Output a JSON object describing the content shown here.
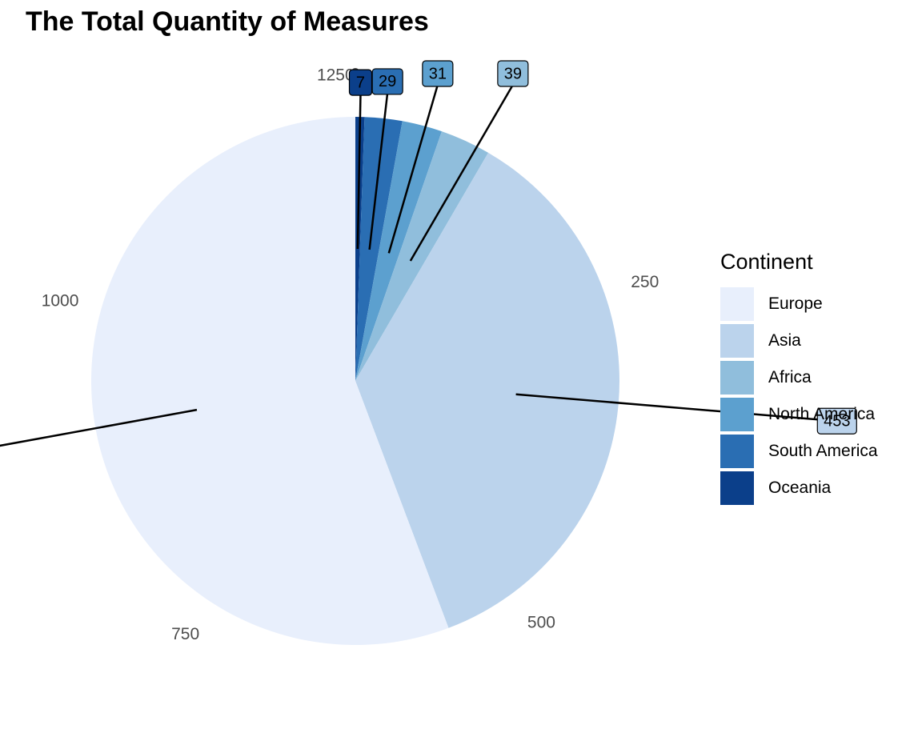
{
  "title": "The Total Quantity of Measures",
  "legend": {
    "title": "Continent"
  },
  "chart_data": {
    "type": "pie",
    "title": "The Total Quantity of Measures",
    "legend_title": "Continent",
    "legend_position": "right",
    "categories": [
      "Oceania",
      "South America",
      "North America",
      "Africa",
      "Asia",
      "Europe"
    ],
    "values": [
      7,
      29,
      31,
      39,
      453,
      704
    ],
    "colors": [
      "#0B3F8A",
      "#2A6EB3",
      "#5CA0CF",
      "#90BEDC",
      "#BBD3EC",
      "#E8EFFC"
    ],
    "legend_order": [
      "Europe",
      "Asia",
      "Africa",
      "North America",
      "South America",
      "Oceania"
    ],
    "theta_ticks": [
      0,
      250,
      500,
      750,
      1000,
      1250
    ],
    "theta_tick_labels": [
      "0",
      "250",
      "500",
      "750",
      "1000",
      "1250"
    ]
  }
}
